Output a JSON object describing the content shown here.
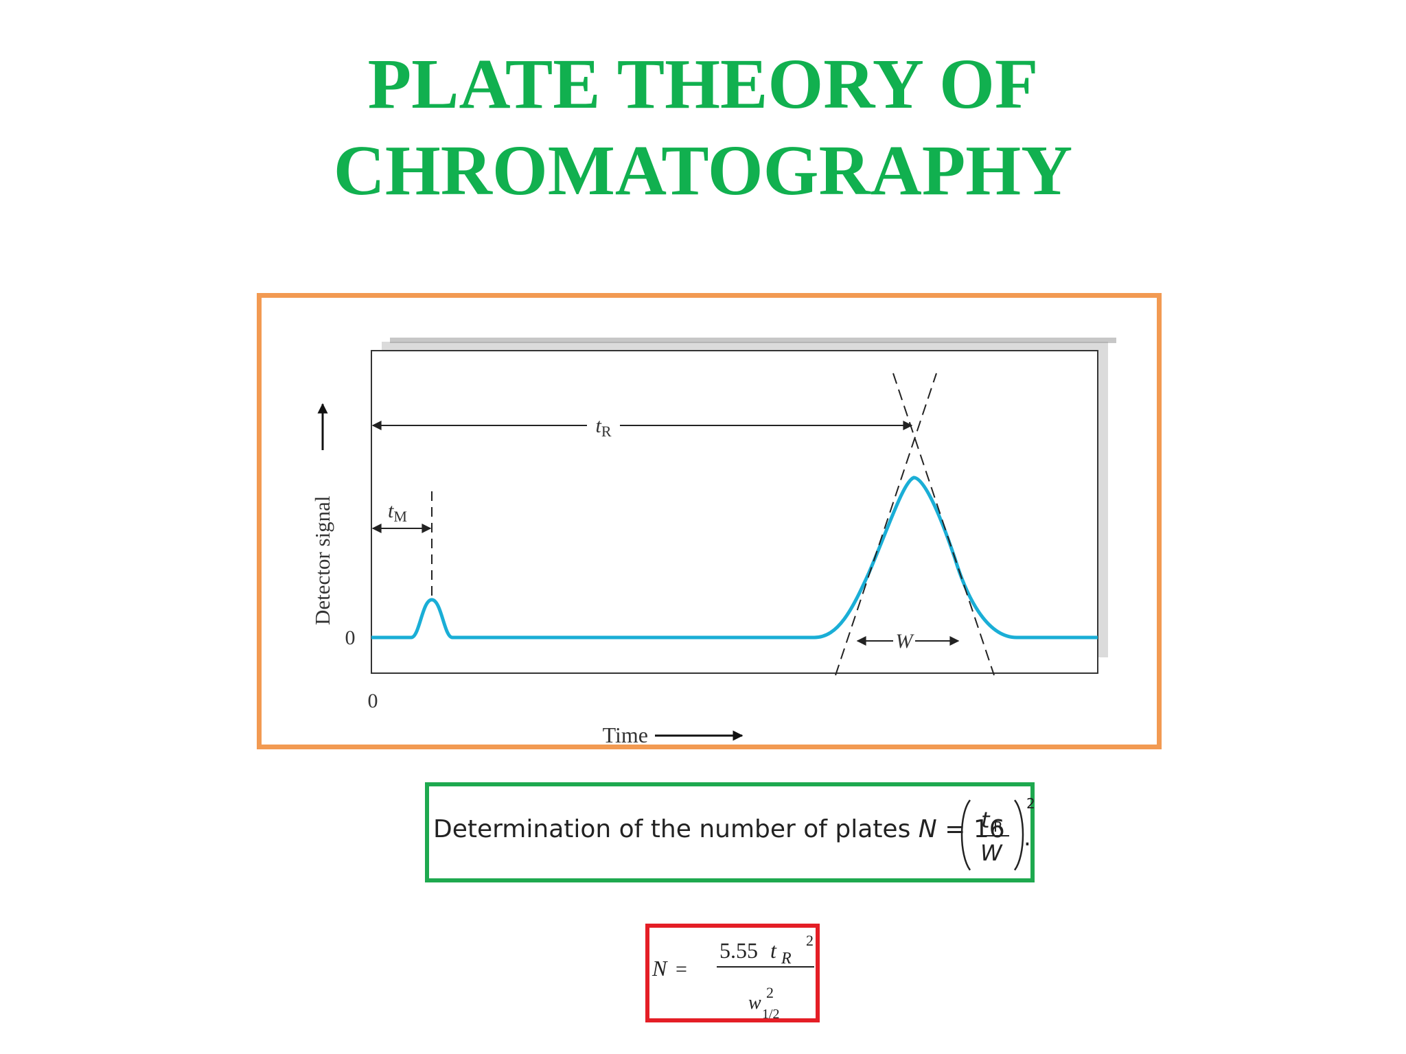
{
  "title": {
    "line1": "PLATE THEORY OF",
    "line2": "CHROMATOGRAPHY"
  },
  "diagram": {
    "ylabel": "Detector signal",
    "xlabel": "Time",
    "y_zero": "0",
    "x_zero": "0",
    "tm_label": "t",
    "tm_sub": "M",
    "tr_label": "t",
    "tr_sub": "R",
    "w_label": "W"
  },
  "formula1": {
    "text": "Determination of the number of plates",
    "lhs": "N",
    "equals": "=",
    "coef": "16",
    "num": "t",
    "num_sub": "R",
    "den": "W",
    "exp": "2",
    "end": "."
  },
  "formula2": {
    "lhs": "N",
    "equals": "=",
    "num_coef": "5.55",
    "num_var": "t",
    "num_sub": "R",
    "num_exp": "2",
    "den_var": "w",
    "den_exp": "2",
    "den_sub": "1/2"
  },
  "colors": {
    "title": "#11b04f",
    "curve": "#1aaed6",
    "frame": "#f29a52",
    "box1": "#1ea94f",
    "box2": "#e41e26"
  }
}
